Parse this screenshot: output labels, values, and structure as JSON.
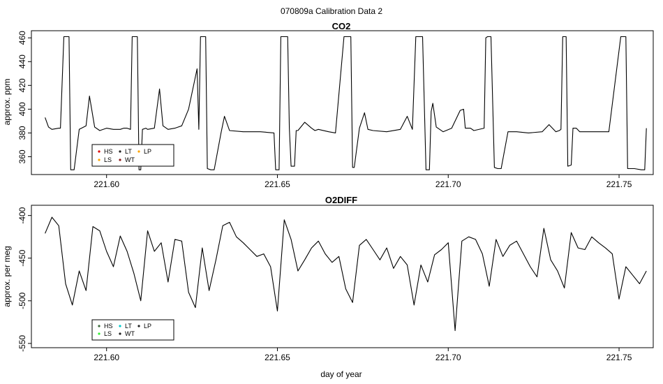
{
  "figure_title": "070809a   Calibration Data 2",
  "xlabel": "day of year",
  "chart_data": [
    {
      "type": "line",
      "title": "CO2",
      "ylabel": "approx. ppm",
      "xlim": [
        221.578,
        221.76
      ],
      "ylim": [
        345,
        466
      ],
      "xticks": [
        221.6,
        221.65,
        221.7,
        221.75
      ],
      "xtick_labels": [
        "221.60",
        "221.65",
        "221.70",
        "221.75"
      ],
      "yticks": [
        360,
        380,
        400,
        420,
        440,
        460
      ],
      "ytick_labels": [
        "360",
        "380",
        "400",
        "420",
        "440",
        "460"
      ],
      "legend": {
        "placement": "bottom-left",
        "entries": [
          {
            "label": "HS",
            "color": "#dd0000"
          },
          {
            "label": "LT",
            "color": "#222222"
          },
          {
            "label": "LP",
            "color": "#ffa500"
          },
          {
            "label": "LS",
            "color": "#ffa500"
          },
          {
            "label": "WT",
            "color": "#8b1a1a"
          }
        ]
      },
      "series": [
        {
          "color": "#000000",
          "x": [
            221.582,
            221.583,
            221.584,
            221.586,
            221.5865,
            221.5875,
            221.588,
            221.589,
            221.5895,
            221.5905,
            221.592,
            221.594,
            221.595,
            221.5965,
            221.598,
            221.6,
            221.602,
            221.604,
            221.605,
            221.606,
            221.607,
            221.6075,
            221.6085,
            221.609,
            221.6095,
            221.61,
            221.6105,
            221.6115,
            221.612,
            221.614,
            221.6155,
            221.6165,
            221.618,
            221.62,
            221.622,
            221.624,
            221.6265,
            221.627,
            221.6275,
            221.6285,
            221.629,
            221.6295,
            221.6305,
            221.6315,
            221.6335,
            221.6345,
            221.636,
            221.64,
            221.645,
            221.649,
            221.6495,
            221.6505,
            221.651,
            221.652,
            221.652,
            221.653,
            221.6535,
            221.654,
            221.6545,
            221.655,
            221.6555,
            221.656,
            221.658,
            221.66,
            221.661,
            221.662,
            221.665,
            221.667,
            221.6695,
            221.6705,
            221.6715,
            221.672,
            221.6725,
            221.674,
            221.6755,
            221.6765,
            221.678,
            221.682,
            221.686,
            221.688,
            221.6895,
            221.6905,
            221.6915,
            221.6925,
            221.6935,
            221.694,
            221.6945,
            221.695,
            221.6955,
            221.6965,
            221.6985,
            221.701,
            221.7035,
            221.7045,
            221.705,
            221.7065,
            221.7075,
            221.7105,
            221.711,
            221.7115,
            221.7125,
            221.7135,
            221.7145,
            221.7155,
            221.7175,
            221.72,
            221.7235,
            221.7275,
            221.7295,
            221.7315,
            221.7325,
            221.733,
            221.7335,
            221.734,
            221.7345,
            221.735,
            221.736,
            221.7365,
            221.7375,
            221.7385,
            221.741,
            221.747,
            221.7505,
            221.7515,
            221.752,
            221.7525,
            221.7535,
            221.7545,
            221.7565,
            221.7575,
            221.758
          ],
          "y": [
            393,
            385,
            383,
            384,
            384,
            461,
            461,
            461,
            349,
            349,
            383,
            386,
            411,
            385,
            382,
            384,
            383,
            383,
            384,
            384,
            383,
            461,
            461,
            461,
            349,
            349,
            383,
            384,
            383,
            384,
            417,
            386,
            383,
            384,
            386,
            400,
            434,
            383,
            461,
            461,
            461,
            350,
            349,
            349,
            380,
            394,
            382,
            381,
            381,
            380,
            349,
            349,
            461,
            461,
            461,
            461,
            384,
            352,
            352,
            352,
            382,
            382,
            389,
            384,
            382,
            383,
            381,
            380,
            461,
            461,
            461,
            351,
            351,
            384,
            397,
            383,
            382,
            381,
            383,
            394,
            383,
            461,
            461,
            461,
            349,
            349,
            349,
            398,
            405,
            385,
            381,
            384,
            399,
            400,
            384,
            384,
            382,
            384,
            460,
            461,
            461,
            351,
            350,
            350,
            381,
            381,
            380,
            381,
            387,
            381,
            382,
            383,
            461,
            461,
            461,
            352,
            353,
            384,
            384,
            381,
            381,
            381,
            461,
            461,
            461,
            350,
            350,
            350,
            349,
            349,
            384
          ]
        }
      ]
    },
    {
      "type": "line",
      "title": "O2DIFF",
      "ylabel": "approx. per meg",
      "xlim": [
        221.578,
        221.76
      ],
      "ylim": [
        -555,
        -388
      ],
      "xticks": [
        221.6,
        221.65,
        221.7,
        221.75
      ],
      "xtick_labels": [
        "221.60",
        "221.65",
        "221.70",
        "221.75"
      ],
      "yticks": [
        -550,
        -500,
        -450,
        -400
      ],
      "ytick_labels": [
        "-550",
        "-500",
        "-450",
        "-400"
      ],
      "legend": {
        "placement": "bottom-left",
        "entries": [
          {
            "label": "HS",
            "color": "#3a6a3a"
          },
          {
            "label": "LT",
            "color": "#00cccc"
          },
          {
            "label": "LP",
            "color": "#222222"
          },
          {
            "label": "LS",
            "color": "#33ee33"
          },
          {
            "label": "WT",
            "color": "#222222"
          }
        ]
      },
      "series": [
        {
          "color": "#000000",
          "x": [
            221.582,
            221.584,
            221.586,
            221.588,
            221.59,
            221.592,
            221.594,
            221.596,
            221.598,
            221.6,
            221.602,
            221.604,
            221.606,
            221.608,
            221.61,
            221.612,
            221.614,
            221.616,
            221.618,
            221.62,
            221.622,
            221.624,
            221.626,
            221.628,
            221.63,
            221.632,
            221.634,
            221.636,
            221.638,
            221.64,
            221.642,
            221.644,
            221.646,
            221.648,
            221.65,
            221.652,
            221.654,
            221.656,
            221.658,
            221.66,
            221.662,
            221.664,
            221.666,
            221.668,
            221.67,
            221.672,
            221.674,
            221.676,
            221.678,
            221.68,
            221.682,
            221.684,
            221.686,
            221.688,
            221.69,
            221.692,
            221.694,
            221.696,
            221.698,
            221.7,
            221.702,
            221.704,
            221.706,
            221.708,
            221.71,
            221.712,
            221.714,
            221.716,
            221.718,
            221.72,
            221.722,
            221.724,
            221.726,
            221.728,
            221.73,
            221.732,
            221.734,
            221.736,
            221.738,
            221.74,
            221.742,
            221.744,
            221.746,
            221.748,
            221.75,
            221.752,
            221.754,
            221.756,
            221.758
          ],
          "y": [
            -421,
            -402,
            -412,
            -480,
            -505,
            -465,
            -488,
            -413,
            -418,
            -442,
            -460,
            -424,
            -442,
            -468,
            -500,
            -418,
            -442,
            -432,
            -478,
            -428,
            -430,
            -490,
            -508,
            -438,
            -488,
            -452,
            -412,
            -408,
            -425,
            -432,
            -440,
            -448,
            -445,
            -460,
            -512,
            -405,
            -428,
            -465,
            -452,
            -438,
            -430,
            -445,
            -455,
            -448,
            -486,
            -502,
            -435,
            -428,
            -440,
            -452,
            -438,
            -462,
            -448,
            -458,
            -505,
            -458,
            -478,
            -446,
            -440,
            -432,
            -535,
            -430,
            -425,
            -428,
            -445,
            -483,
            -428,
            -448,
            -435,
            -430,
            -445,
            -460,
            -472,
            -415,
            -452,
            -465,
            -485,
            -420,
            -438,
            -440,
            -425,
            -432,
            -438,
            -445,
            -498,
            -460,
            -470,
            -480,
            -465
          ]
        }
      ]
    }
  ]
}
